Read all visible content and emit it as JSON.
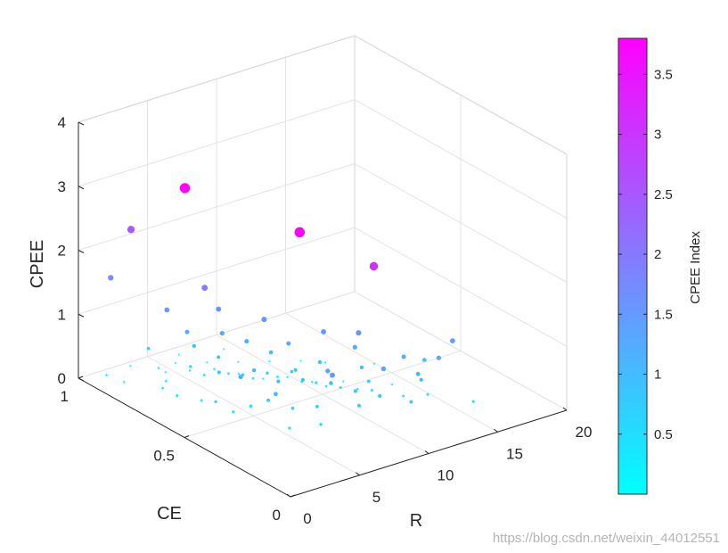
{
  "chart_data": {
    "type": "scatter",
    "projection": "3d",
    "xlabel": "R",
    "ylabel": "CE",
    "zlabel": "CPEE",
    "xlim": [
      0,
      20
    ],
    "ylim": [
      0,
      1
    ],
    "zlim": [
      0,
      4
    ],
    "x_ticks": [
      "0",
      "5",
      "10",
      "15",
      "20"
    ],
    "y_ticks": [
      "0",
      "0.5",
      "1"
    ],
    "z_ticks": [
      "0",
      "1",
      "2",
      "3",
      "4"
    ],
    "grid": true,
    "colormap": "cool",
    "color_min": "#00ffff",
    "color_max": "#ff00ff",
    "colorbar": {
      "label": "CPEE Index",
      "range": [
        0,
        3.8
      ],
      "ticks": [
        "0.5",
        "1",
        "1.5",
        "2",
        "2.5",
        "3",
        "3.5"
      ],
      "placement": "right"
    },
    "series": [
      {
        "points": [
          [
            0.8,
            0.55,
            3.75
          ],
          [
            2.2,
            0.1,
            3.8
          ],
          [
            6.8,
            0.05,
            3.05
          ],
          [
            1.5,
            0.85,
            2.5
          ],
          [
            0.8,
            0.9,
            1.7
          ],
          [
            3.0,
            0.6,
            1.95
          ],
          [
            8.0,
            0.2,
            1.65
          ],
          [
            12.5,
            0.05,
            1.5
          ],
          [
            1.8,
            0.7,
            1.5
          ],
          [
            4.0,
            0.6,
            1.55
          ],
          [
            5.0,
            0.45,
            1.6
          ],
          [
            7.0,
            0.3,
            1.55
          ],
          [
            2.5,
            0.65,
            1.2
          ],
          [
            3.5,
            0.55,
            1.3
          ],
          [
            4.5,
            0.5,
            1.2
          ],
          [
            6.0,
            0.4,
            1.25
          ],
          [
            8.5,
            0.25,
            1.3
          ],
          [
            10.5,
            0.15,
            1.2
          ],
          [
            12.0,
            0.15,
            1.05
          ],
          [
            11.0,
            0.1,
            0.9
          ],
          [
            9.0,
            0.25,
            0.95
          ],
          [
            5.5,
            0.45,
            1.05
          ],
          [
            7.5,
            0.35,
            0.95
          ],
          [
            3.0,
            0.65,
            0.95
          ],
          [
            4.0,
            0.6,
            0.8
          ],
          [
            6.5,
            0.4,
            0.8
          ],
          [
            9.5,
            0.25,
            0.7
          ],
          [
            14.0,
            0.05,
            0.45
          ],
          [
            2.0,
            0.8,
            0.7
          ],
          [
            3.5,
            0.7,
            0.5
          ],
          [
            5.0,
            0.55,
            0.55
          ],
          [
            6.0,
            0.5,
            0.6
          ],
          [
            7.0,
            0.45,
            0.65
          ],
          [
            8.0,
            0.4,
            0.5
          ],
          [
            9.0,
            0.35,
            0.45
          ],
          [
            10.5,
            0.3,
            0.4
          ],
          [
            12.0,
            0.25,
            0.3
          ],
          [
            13.0,
            0.2,
            0.35
          ],
          [
            4.5,
            0.7,
            0.3
          ],
          [
            5.5,
            0.65,
            0.35
          ],
          [
            6.5,
            0.6,
            0.3
          ],
          [
            7.5,
            0.55,
            0.35
          ],
          [
            8.5,
            0.5,
            0.3
          ],
          [
            9.5,
            0.45,
            0.25
          ],
          [
            11.0,
            0.4,
            0.2
          ],
          [
            5.0,
            0.8,
            0.15
          ],
          [
            6.0,
            0.75,
            0.2
          ],
          [
            7.0,
            0.7,
            0.15
          ],
          [
            8.0,
            0.65,
            0.1
          ],
          [
            9.0,
            0.6,
            0.15
          ],
          [
            10.0,
            0.55,
            0.1
          ],
          [
            11.5,
            0.5,
            0.1
          ],
          [
            13.5,
            0.4,
            0.1
          ],
          [
            4.0,
            0.85,
            0.1
          ],
          [
            5.5,
            0.9,
            0.05
          ],
          [
            7.0,
            0.85,
            0.05
          ],
          [
            8.5,
            0.8,
            0.05
          ],
          [
            10.0,
            0.75,
            0.05
          ],
          [
            11.5,
            0.7,
            0.05
          ],
          [
            12.5,
            0.65,
            0.05
          ],
          [
            3.0,
            0.95,
            0.08
          ],
          [
            6.5,
            0.95,
            0.02
          ],
          [
            9.0,
            0.9,
            0.03
          ],
          [
            14.5,
            0.55,
            0.08
          ],
          [
            3.5,
            0.4,
            1.0
          ],
          [
            4.5,
            0.35,
            0.85
          ],
          [
            5.5,
            0.3,
            0.9
          ],
          [
            2.5,
            0.5,
            0.85
          ],
          [
            6.0,
            0.2,
            1.0
          ],
          [
            7.0,
            0.15,
            0.9
          ],
          [
            3.0,
            0.3,
            0.75
          ],
          [
            4.0,
            0.25,
            0.65
          ],
          [
            5.0,
            0.2,
            0.7
          ],
          [
            2.5,
            0.35,
            0.6
          ],
          [
            6.5,
            0.1,
            0.8
          ],
          [
            8.0,
            0.1,
            0.85
          ],
          [
            1.5,
            0.45,
            0.55
          ],
          [
            2.0,
            0.4,
            0.45
          ],
          [
            3.0,
            0.2,
            0.5
          ],
          [
            4.5,
            0.15,
            0.55
          ],
          [
            9.5,
            0.05,
            0.75
          ],
          [
            1.0,
            0.6,
            0.4
          ],
          [
            2.0,
            0.55,
            0.35
          ],
          [
            1.5,
            0.7,
            0.3
          ],
          [
            2.5,
            0.75,
            0.25
          ],
          [
            0.5,
            0.9,
            0.2
          ],
          [
            1.0,
            0.85,
            0.15
          ],
          [
            3.5,
            0.85,
            0.2
          ],
          [
            10.0,
            0.05,
            1.15
          ],
          [
            11.5,
            0.05,
            1.3
          ],
          [
            7.5,
            0.05,
            1.4
          ],
          [
            5.0,
            0.15,
            1.35
          ],
          [
            2.0,
            0.2,
            1.1
          ],
          [
            1.0,
            0.3,
            1.25
          ],
          [
            3.8,
            0.05,
            1.55
          ]
        ]
      }
    ]
  },
  "watermark": "https://blog.csdn.net/weixin_44012551"
}
